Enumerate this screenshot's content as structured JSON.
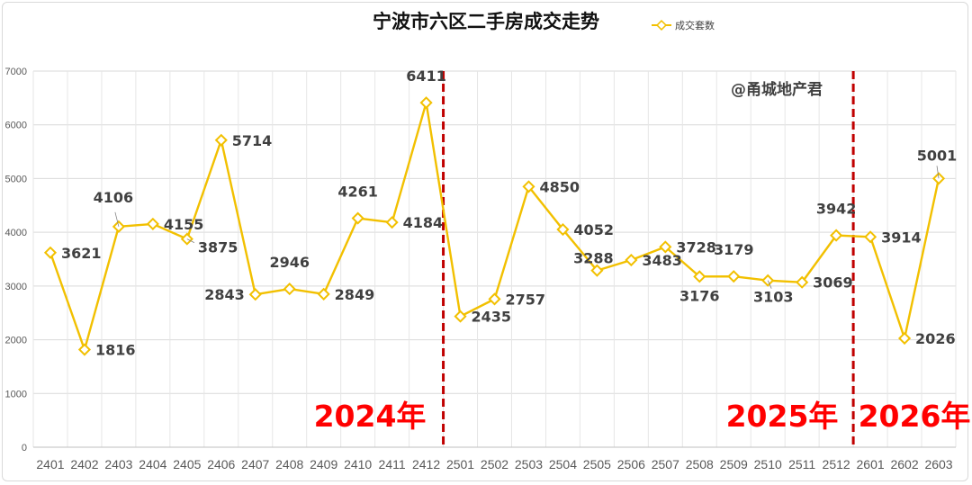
{
  "chart_data": {
    "type": "line",
    "title": "宁波市六区二手房成交走势",
    "watermark": "@甬城地产君",
    "categories": [
      "2401",
      "2402",
      "2403",
      "2404",
      "2405",
      "2406",
      "2407",
      "2408",
      "2409",
      "2410",
      "2411",
      "2412",
      "2501",
      "2502",
      "2503",
      "2504",
      "2505",
      "2506",
      "2507",
      "2508",
      "2509",
      "2510",
      "2511",
      "2512",
      "2601",
      "2602",
      "2603"
    ],
    "series": [
      {
        "name": "成交套数",
        "color": "#f2c000",
        "values": [
          3621,
          1816,
          4106,
          4155,
          3875,
          5714,
          2843,
          2946,
          2849,
          4261,
          4184,
          6411,
          2435,
          2757,
          4850,
          4052,
          3288,
          3483,
          3728,
          3176,
          3179,
          3103,
          3069,
          3942,
          3914,
          2026,
          5001
        ]
      }
    ],
    "ylim": [
      0,
      7000
    ],
    "yticks": [
      0,
      1000,
      2000,
      3000,
      4000,
      5000,
      6000,
      7000
    ],
    "grid": true,
    "legend": "top",
    "year_dividers": [
      {
        "after_category": "2412",
        "color": "#c00000"
      },
      {
        "after_category": "2512",
        "color": "#c00000"
      }
    ],
    "year_labels": [
      "2024年",
      "2025年",
      "2026年"
    ],
    "year_label_color": "#ff0000"
  }
}
